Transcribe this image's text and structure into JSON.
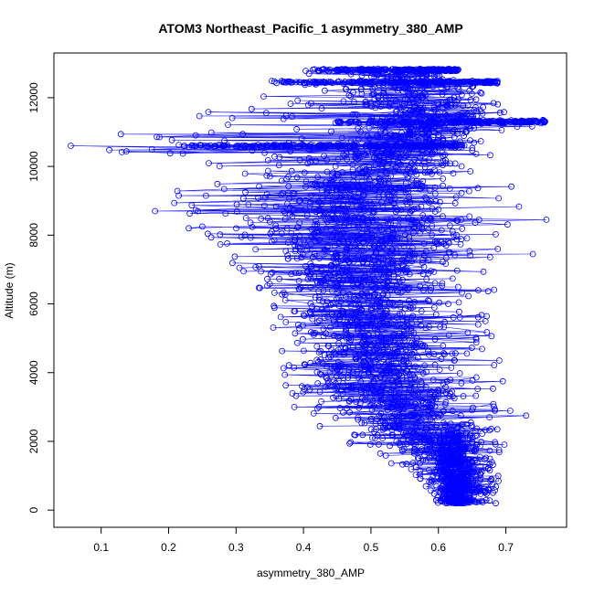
{
  "chart_data": {
    "type": "scatter",
    "title": "ATOM3 Northeast_Pacific_1 asymmetry_380_AMP",
    "xlabel": "asymmetry_380_AMP",
    "ylabel": "Altitude (m)",
    "xlim": [
      0.03,
      0.79
    ],
    "ylim": [
      -500,
      13300
    ],
    "xticks": [
      0.1,
      0.2,
      0.3,
      0.4,
      0.5,
      0.6,
      0.7
    ],
    "xtick_labels": [
      "0.1",
      "0.2",
      "0.3",
      "0.4",
      "0.5",
      "0.6",
      "0.7"
    ],
    "yticks": [
      0,
      2000,
      4000,
      6000,
      8000,
      10000,
      12000
    ],
    "ytick_labels": [
      "0",
      "2000",
      "4000",
      "6000",
      "8000",
      "10000",
      "12000"
    ],
    "grid": false,
    "series_color": "#0000ff",
    "marker": "open-circle",
    "connected": true,
    "profile": [
      {
        "alt": 200,
        "x_min": 0.6,
        "x_max": 0.69,
        "center": 0.63
      },
      {
        "alt": 1000,
        "x_min": 0.57,
        "x_max": 0.69,
        "center": 0.63
      },
      {
        "alt": 2000,
        "x_min": 0.44,
        "x_max": 0.7,
        "center": 0.6
      },
      {
        "alt": 3000,
        "x_min": 0.37,
        "x_max": 0.72,
        "center": 0.55
      },
      {
        "alt": 4000,
        "x_min": 0.37,
        "x_max": 0.7,
        "center": 0.5
      },
      {
        "alt": 5000,
        "x_min": 0.36,
        "x_max": 0.68,
        "center": 0.49
      },
      {
        "alt": 6000,
        "x_min": 0.33,
        "x_max": 0.68,
        "center": 0.5
      },
      {
        "alt": 7000,
        "x_min": 0.3,
        "x_max": 0.7,
        "center": 0.5
      },
      {
        "alt": 8000,
        "x_min": 0.24,
        "x_max": 0.76,
        "center": 0.5
      },
      {
        "alt": 9000,
        "x_min": 0.2,
        "x_max": 0.72,
        "center": 0.48
      },
      {
        "alt": 10000,
        "x_min": 0.24,
        "x_max": 0.7,
        "center": 0.52
      },
      {
        "alt": 10600,
        "x_min": 0.06,
        "x_max": 0.66,
        "center": 0.55
      },
      {
        "alt": 11300,
        "x_min": 0.2,
        "x_max": 0.76,
        "center": 0.58
      },
      {
        "alt": 12000,
        "x_min": 0.32,
        "x_max": 0.69,
        "center": 0.56
      },
      {
        "alt": 12800,
        "x_min": 0.4,
        "x_max": 0.63,
        "center": 0.55
      }
    ],
    "dense_bands": [
      {
        "alt": 10600,
        "x_min": 0.21,
        "x_max": 0.64
      },
      {
        "alt": 11300,
        "x_min": 0.44,
        "x_max": 0.76
      },
      {
        "alt": 12450,
        "x_min": 0.35,
        "x_max": 0.69
      },
      {
        "alt": 12800,
        "x_min": 0.41,
        "x_max": 0.63
      }
    ],
    "notable_points": [
      {
        "x": 0.055,
        "y": 10600
      },
      {
        "x": 0.18,
        "y": 8700
      },
      {
        "x": 0.215,
        "y": 9150
      },
      {
        "x": 0.23,
        "y": 8200
      },
      {
        "x": 0.25,
        "y": 8250
      },
      {
        "x": 0.305,
        "y": 7050
      },
      {
        "x": 0.76,
        "y": 8450
      },
      {
        "x": 0.74,
        "y": 7450
      },
      {
        "x": 0.73,
        "y": 2750
      },
      {
        "x": 0.755,
        "y": 11350
      },
      {
        "x": 0.69,
        "y": 1750
      },
      {
        "x": 0.685,
        "y": 200
      }
    ]
  }
}
